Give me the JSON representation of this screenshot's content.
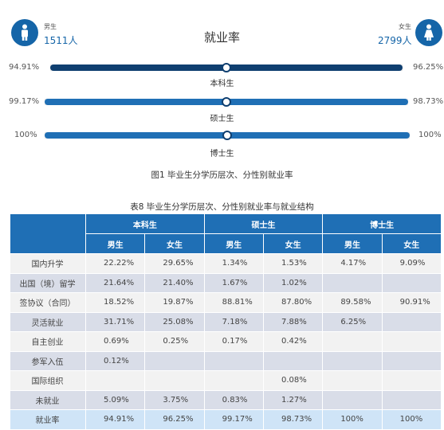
{
  "header": {
    "male_label": "男生",
    "male_count": "1511人",
    "title": "就业率",
    "female_label": "女生",
    "female_count": "2799人",
    "male_icon": "male-person-icon",
    "female_icon": "female-person-icon"
  },
  "bars": [
    {
      "left_pct": "94.91%",
      "right_pct": "96.25%",
      "label": "本科生",
      "male_rate": 94.91,
      "female_rate": 96.25,
      "color": "#0f3f70"
    },
    {
      "left_pct": "99.17%",
      "right_pct": "98.73%",
      "label": "硕士生",
      "male_rate": 99.17,
      "female_rate": 98.73,
      "color": "#1f6fb5"
    },
    {
      "left_pct": "100%",
      "right_pct": "100%",
      "label": "博士生",
      "male_rate": 100,
      "female_rate": 100,
      "color": "#1f6fb5"
    }
  ],
  "figure_caption": "图1  毕业生分学历层次、分性别就业率",
  "table_caption": "表8  毕业生分学历层次、分性别就业率与就业结构",
  "table": {
    "groups": [
      "本科生",
      "硕士生",
      "博士生"
    ],
    "subheaders": [
      "男生",
      "女生",
      "男生",
      "女生",
      "男生",
      "女生"
    ],
    "rows": [
      {
        "label": "国内升学",
        "cells": [
          "22.22%",
          "29.65%",
          "1.34%",
          "1.53%",
          "4.17%",
          "9.09%"
        ]
      },
      {
        "label": "出国（境）留学",
        "cells": [
          "21.64%",
          "21.40%",
          "1.67%",
          "1.02%",
          "",
          ""
        ]
      },
      {
        "label": "签协议（合同）",
        "cells": [
          "18.52%",
          "19.87%",
          "88.81%",
          "87.80%",
          "89.58%",
          "90.91%"
        ]
      },
      {
        "label": "灵活就业",
        "cells": [
          "31.71%",
          "25.08%",
          "7.18%",
          "7.88%",
          "6.25%",
          ""
        ]
      },
      {
        "label": "自主创业",
        "cells": [
          "0.69%",
          "0.25%",
          "0.17%",
          "0.42%",
          "",
          ""
        ]
      },
      {
        "label": "参军入伍",
        "cells": [
          "0.12%",
          "",
          "",
          "",
          "",
          ""
        ]
      },
      {
        "label": "国际组织",
        "cells": [
          "",
          "",
          "",
          "0.08%",
          "",
          ""
        ]
      },
      {
        "label": "未就业",
        "cells": [
          "5.09%",
          "3.75%",
          "0.83%",
          "1.27%",
          "",
          ""
        ]
      },
      {
        "label": "就业率",
        "cells": [
          "94.91%",
          "96.25%",
          "99.17%",
          "98.73%",
          "100%",
          "100%"
        ]
      }
    ]
  },
  "colors": {
    "accent": "#1f6fb5",
    "dark": "#0f3f70",
    "row_alt": "#d9dde8",
    "row_final": "#cfe4f7"
  }
}
